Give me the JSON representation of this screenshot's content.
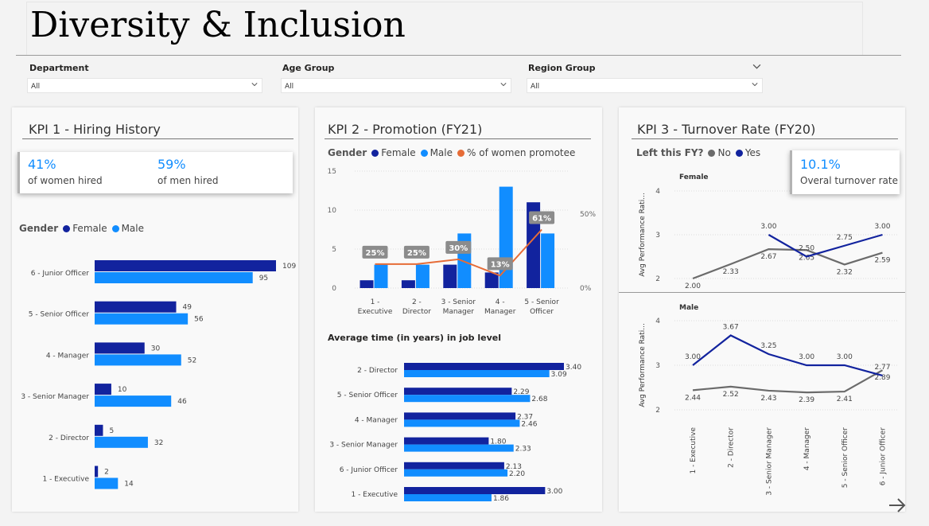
{
  "page": {
    "title": "Diversity & Inclusion"
  },
  "slicers": [
    {
      "label": "Department",
      "value": "All"
    },
    {
      "label": "Age Group",
      "value": "All"
    },
    {
      "label": "Region Group",
      "value": "All"
    }
  ],
  "kpi1": {
    "title": "KPI 1 - Hiring History",
    "women_value": "41%",
    "women_label": "of women hired",
    "men_value": "59%",
    "men_label": "of men hired",
    "legend_title": "Gender",
    "legend_female": "Female",
    "legend_male": "Male"
  },
  "kpi2": {
    "title": "KPI 2 - Promotion (FY21)",
    "legend_title": "Gender",
    "legend_female": "Female",
    "legend_male": "Male",
    "legend_pct": "% of women promotee",
    "time_title": "Average time (in years) in job level"
  },
  "kpi3": {
    "title": "KPI 3 - Turnover Rate (FY20)",
    "legend_title": "Left this FY?",
    "legend_no": "No",
    "legend_yes": "Yes",
    "card_value": "10.1%",
    "card_label": "Overal turnover rate",
    "female_label": "Female",
    "male_label": "Male"
  },
  "colors": {
    "female": "#12239e",
    "male": "#118dff",
    "pct": "#e66c37",
    "no": "#6b6b6b",
    "yes": "#12239e"
  },
  "chart_data": [
    {
      "type": "bar",
      "orientation": "horizontal",
      "categories": [
        "6 - Junior Officer",
        "5 - Senior Officer",
        "4 - Manager",
        "3 - Senior Manager",
        "2 - Director",
        "1 - Executive"
      ],
      "series": [
        {
          "name": "Female",
          "values": [
            109,
            49,
            30,
            10,
            5,
            2
          ]
        },
        {
          "name": "Male",
          "values": [
            95,
            56,
            52,
            46,
            32,
            14
          ]
        }
      ],
      "xlim": [
        0,
        109
      ]
    },
    {
      "type": "bar",
      "categories": [
        "1 - Executive",
        "2 - Director",
        "3 - Senior Manager",
        "4 - Manager",
        "5 - Senior Officer"
      ],
      "series": [
        {
          "name": "Female",
          "values": [
            1,
            1,
            3,
            2,
            11
          ]
        },
        {
          "name": "Male",
          "values": [
            3,
            3,
            7,
            13,
            7
          ]
        },
        {
          "name": "% of women promotee",
          "values": [
            25,
            25,
            30,
            13,
            61
          ],
          "axis": "right",
          "type": "line"
        }
      ],
      "ylim": [
        0,
        15
      ],
      "y_ticks": [
        0,
        5,
        10,
        15
      ],
      "y2_ticks": [
        "0%",
        "50%"
      ],
      "y2lim": [
        0,
        122
      ]
    },
    {
      "type": "bar",
      "orientation": "horizontal",
      "categories": [
        "2 - Director",
        "5 - Senior Officer",
        "4 - Manager",
        "3 - Senior Manager",
        "6 - Junior Officer",
        "1 - Executive"
      ],
      "series": [
        {
          "name": "Female",
          "values": [
            3.4,
            2.29,
            2.37,
            1.8,
            2.13,
            3.0
          ]
        },
        {
          "name": "Male",
          "values": [
            3.09,
            2.68,
            2.46,
            2.33,
            2.2,
            1.86
          ]
        }
      ],
      "xlim": [
        0,
        3.4
      ]
    },
    {
      "type": "line",
      "ylabel": "Avg Performance Rati...",
      "categories": [
        "1 - Executive",
        "2 - Director",
        "3 - Senior Manager",
        "4 - Manager",
        "5 - Senior Officer",
        "6 - Junior Officer"
      ],
      "panels": [
        {
          "name": "Female",
          "series": [
            {
              "name": "No",
              "values": [
                2.0,
                2.33,
                2.67,
                2.65,
                2.32,
                2.59
              ]
            },
            {
              "name": "Yes",
              "values": [
                null,
                null,
                3.0,
                2.5,
                2.75,
                3.0
              ]
            }
          ]
        },
        {
          "name": "Male",
          "series": [
            {
              "name": "No",
              "values": [
                2.44,
                2.52,
                2.43,
                2.39,
                2.41,
                2.89
              ]
            },
            {
              "name": "Yes",
              "values": [
                3.0,
                3.67,
                3.25,
                3.0,
                3.0,
                2.77
              ]
            }
          ]
        }
      ],
      "ylim": [
        2,
        4
      ],
      "y_ticks": [
        2,
        3,
        4
      ]
    }
  ]
}
